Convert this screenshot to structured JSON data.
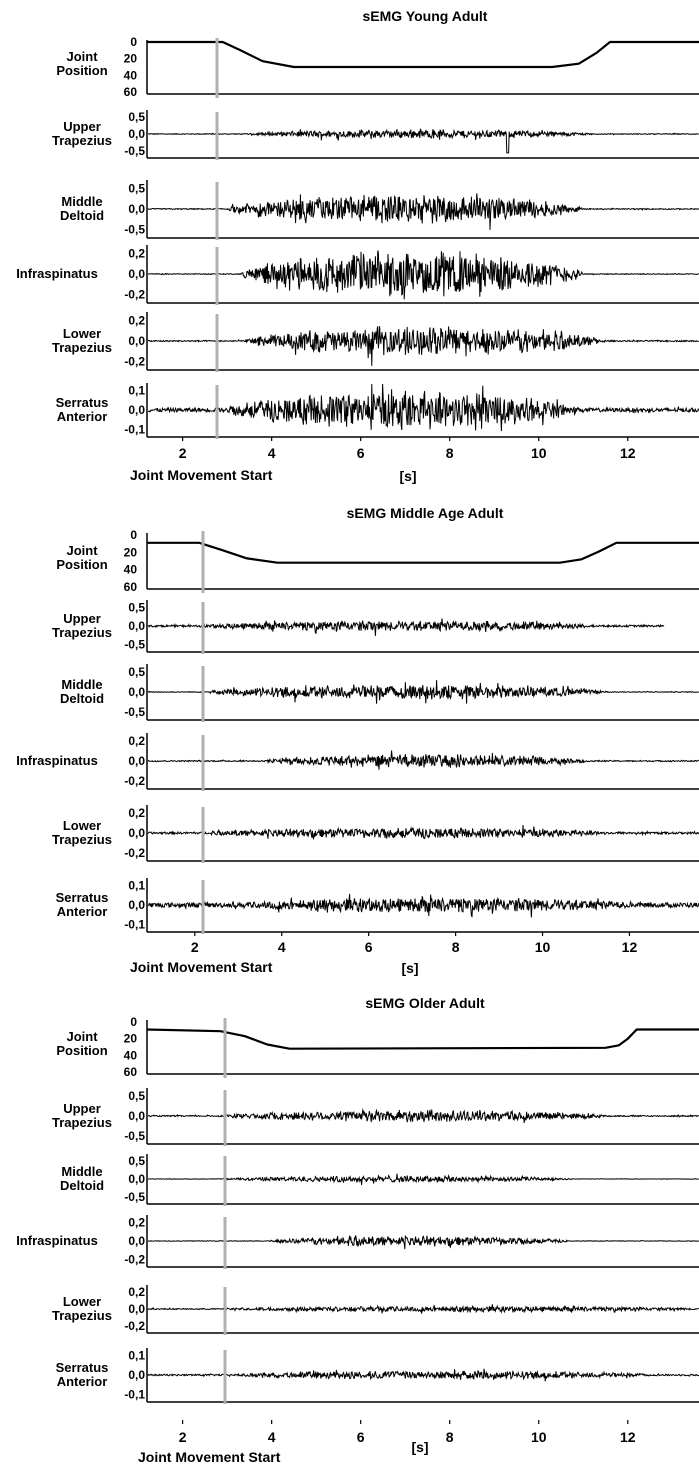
{
  "chart_data": [
    {
      "type": "line",
      "title": "sEMG Young Adult",
      "xlabel": "[s]",
      "annotation": "Joint Movement Start",
      "movement_start_s": 2.85,
      "xlim": [
        1.2,
        13.6
      ],
      "xticks": [
        "2",
        "4",
        "6",
        "8",
        "10",
        "12"
      ],
      "xtick_values": [
        2,
        4,
        6,
        8,
        10,
        12
      ],
      "joint_position": {
        "label_lines": [
          "Joint",
          "Position"
        ],
        "yticks": [
          "0",
          "20",
          "40",
          "60"
        ],
        "ytick_values": [
          0,
          20,
          40,
          60
        ],
        "ylim": [
          0,
          60
        ],
        "inverted": true,
        "x": [
          1.2,
          2.9,
          3.3,
          3.8,
          4.5,
          10.3,
          10.9,
          11.3,
          11.6,
          13.6
        ],
        "y": [
          0,
          0,
          10,
          23,
          30,
          30,
          26,
          13,
          0,
          0
        ]
      },
      "emg_channels": [
        {
          "name_lines": [
            "Upper",
            "Trapezius"
          ],
          "yticks": [
            "0,5",
            "0,0",
            "-0,5"
          ],
          "ytick_values": [
            0.5,
            0,
            -0.5
          ],
          "ylim": [
            -0.7,
            0.7
          ],
          "activity": {
            "start": 3.5,
            "end": 11.2,
            "amp": 0.13,
            "baseline": 0.012
          },
          "spike": {
            "x": 9.3,
            "y": -0.55
          }
        },
        {
          "name_lines": [
            "Middle",
            "Deltoid"
          ],
          "yticks": [
            "0,5",
            "0,0",
            "-0,5"
          ],
          "ytick_values": [
            0.5,
            0,
            -0.5
          ],
          "ylim": [
            -0.7,
            0.7
          ],
          "activity": {
            "start": 3.0,
            "end": 11.0,
            "amp": 0.38,
            "baseline": 0.012
          }
        },
        {
          "name_lines": [
            "Infraspinatus"
          ],
          "yticks": [
            "0,2",
            "0,0",
            "-0,2"
          ],
          "ytick_values": [
            0.2,
            0,
            -0.2
          ],
          "ylim": [
            -0.28,
            0.28
          ],
          "activity": {
            "start": 3.3,
            "end": 11.0,
            "amp": 0.24,
            "baseline": 0.004
          }
        },
        {
          "name_lines": [
            "Lower",
            "Trapezius"
          ],
          "yticks": [
            "0,2",
            "0,0",
            "-0,2"
          ],
          "ytick_values": [
            0.2,
            0,
            -0.2
          ],
          "ylim": [
            -0.28,
            0.28
          ],
          "activity": {
            "start": 3.4,
            "end": 11.5,
            "amp": 0.15,
            "baseline": 0.006
          }
        },
        {
          "name_lines": [
            "Serratus",
            "Anterior"
          ],
          "yticks": [
            "0,1",
            "0,0",
            "-0,1"
          ],
          "ytick_values": [
            0.1,
            0,
            -0.1
          ],
          "ylim": [
            -0.14,
            0.14
          ],
          "activity": {
            "start": 3.0,
            "end": 10.9,
            "amp": 0.1,
            "baseline": 0.01
          }
        }
      ]
    },
    {
      "type": "line",
      "title": "sEMG Middle Age Adult",
      "xlabel": "[s]",
      "annotation": "Joint Movement Start",
      "movement_start_s": 2.1,
      "xlim": [
        0.9,
        13.6
      ],
      "xticks": [
        "2",
        "4",
        "6",
        "8",
        "10",
        "12"
      ],
      "xtick_values": [
        2,
        4,
        6,
        8,
        10,
        12
      ],
      "joint_position": {
        "label_lines": [
          "Joint",
          "Position"
        ],
        "yticks": [
          "0",
          "20",
          "40",
          "60"
        ],
        "ytick_values": [
          0,
          20,
          40,
          60
        ],
        "ylim": [
          0,
          60
        ],
        "inverted": true,
        "x": [
          0.9,
          2.1,
          2.6,
          3.2,
          3.9,
          10.4,
          10.9,
          11.3,
          11.7,
          13.6
        ],
        "y": [
          9,
          9,
          17,
          27,
          32,
          32,
          28,
          19,
          9,
          9
        ]
      },
      "emg_channels": [
        {
          "name_lines": [
            "Upper",
            "Trapezius"
          ],
          "yticks": [
            "0,5",
            "0,0",
            "-0,5"
          ],
          "ytick_values": [
            0.5,
            0,
            -0.5
          ],
          "ylim": [
            -0.7,
            0.7
          ],
          "activity": {
            "start": 2.2,
            "end": 11.2,
            "amp": 0.13,
            "baseline": 0.025
          },
          "trace_end": 12.8
        },
        {
          "name_lines": [
            "Middle",
            "Deltoid"
          ],
          "yticks": [
            "0,5",
            "0,0",
            "-0,5"
          ],
          "ytick_values": [
            0.5,
            0,
            -0.5
          ],
          "ylim": [
            -0.7,
            0.7
          ],
          "activity": {
            "start": 2.3,
            "end": 11.5,
            "amp": 0.2,
            "baseline": 0.01
          }
        },
        {
          "name_lines": [
            "Infraspinatus"
          ],
          "yticks": [
            "0,2",
            "0,0",
            "-0,2"
          ],
          "ytick_values": [
            0.2,
            0,
            -0.2
          ],
          "ylim": [
            -0.28,
            0.28
          ],
          "activity": {
            "start": 3.6,
            "end": 11.0,
            "amp": 0.07,
            "baseline": 0.006
          }
        },
        {
          "name_lines": [
            "Lower",
            "Trapezius"
          ],
          "yticks": [
            "0,2",
            "0,0",
            "-0,2"
          ],
          "ytick_values": [
            0.2,
            0,
            -0.2
          ],
          "ylim": [
            -0.28,
            0.28
          ],
          "activity": {
            "start": 2.3,
            "end": 11.5,
            "amp": 0.05,
            "baseline": 0.01
          }
        },
        {
          "name_lines": [
            "Serratus",
            "Anterior"
          ],
          "yticks": [
            "0,1",
            "0,0",
            "-0,1"
          ],
          "ytick_values": [
            0.1,
            0,
            -0.1
          ],
          "ylim": [
            -0.14,
            0.14
          ],
          "activity": {
            "start": 3.2,
            "end": 12.0,
            "amp": 0.03,
            "baseline": 0.012
          }
        }
      ]
    },
    {
      "type": "line",
      "title": "sEMG Older Adult",
      "xlabel": "[s]",
      "annotation": "Joint Movement Start",
      "movement_start_s": 2.85,
      "xlim": [
        1.2,
        13.6
      ],
      "xticks": [
        "2",
        "4",
        "6",
        "8",
        "10",
        "12"
      ],
      "xtick_values": [
        2,
        4,
        6,
        8,
        10,
        12
      ],
      "joint_position": {
        "label_lines": [
          "Joint",
          "Position"
        ],
        "yticks": [
          "0",
          "20",
          "40",
          "60"
        ],
        "ytick_values": [
          0,
          20,
          40,
          60
        ],
        "ylim": [
          0,
          60
        ],
        "inverted": true,
        "x": [
          1.2,
          2.85,
          3.4,
          3.9,
          4.4,
          11.5,
          11.8,
          12.0,
          12.2,
          13.6
        ],
        "y": [
          9,
          11,
          17,
          27,
          32,
          31,
          28,
          20,
          9,
          9
        ]
      },
      "emg_channels": [
        {
          "name_lines": [
            "Upper",
            "Trapezius"
          ],
          "yticks": [
            "0,5",
            "0,0",
            "-0,5"
          ],
          "ytick_values": [
            0.5,
            0,
            -0.5
          ],
          "ylim": [
            -0.7,
            0.7
          ],
          "activity": {
            "start": 2.9,
            "end": 11.5,
            "amp": 0.15,
            "baseline": 0.015
          }
        },
        {
          "name_lines": [
            "Middle",
            "Deltoid"
          ],
          "yticks": [
            "0,5",
            "0,0",
            "-0,5"
          ],
          "ytick_values": [
            0.5,
            0,
            -0.5
          ],
          "ylim": [
            -0.7,
            0.7
          ],
          "activity": {
            "start": 2.9,
            "end": 10.8,
            "amp": 0.1,
            "baseline": 0.005
          }
        },
        {
          "name_lines": [
            "Infraspinatus"
          ],
          "yticks": [
            "0,2",
            "0,0",
            "-0,2"
          ],
          "ytick_values": [
            0.2,
            0,
            -0.2
          ],
          "ylim": [
            -0.28,
            0.28
          ],
          "activity": {
            "start": 3.9,
            "end": 10.7,
            "amp": 0.06,
            "baseline": 0.003
          }
        },
        {
          "name_lines": [
            "Lower",
            "Trapezius"
          ],
          "yticks": [
            "0,2",
            "0,0",
            "-0,2"
          ],
          "ytick_values": [
            0.2,
            0,
            -0.2
          ],
          "ylim": [
            -0.28,
            0.28
          ],
          "activity": {
            "start": 3.0,
            "end": 13.6,
            "amp": 0.03,
            "baseline": 0.006
          }
        },
        {
          "name_lines": [
            "Serratus",
            "Anterior"
          ],
          "yticks": [
            "0,1",
            "0,0",
            "-0,1"
          ],
          "ytick_values": [
            0.1,
            0,
            -0.1
          ],
          "ylim": [
            -0.14,
            0.14
          ],
          "activity": {
            "start": 3.2,
            "end": 12.5,
            "amp": 0.02,
            "baseline": 0.004
          }
        }
      ]
    }
  ]
}
